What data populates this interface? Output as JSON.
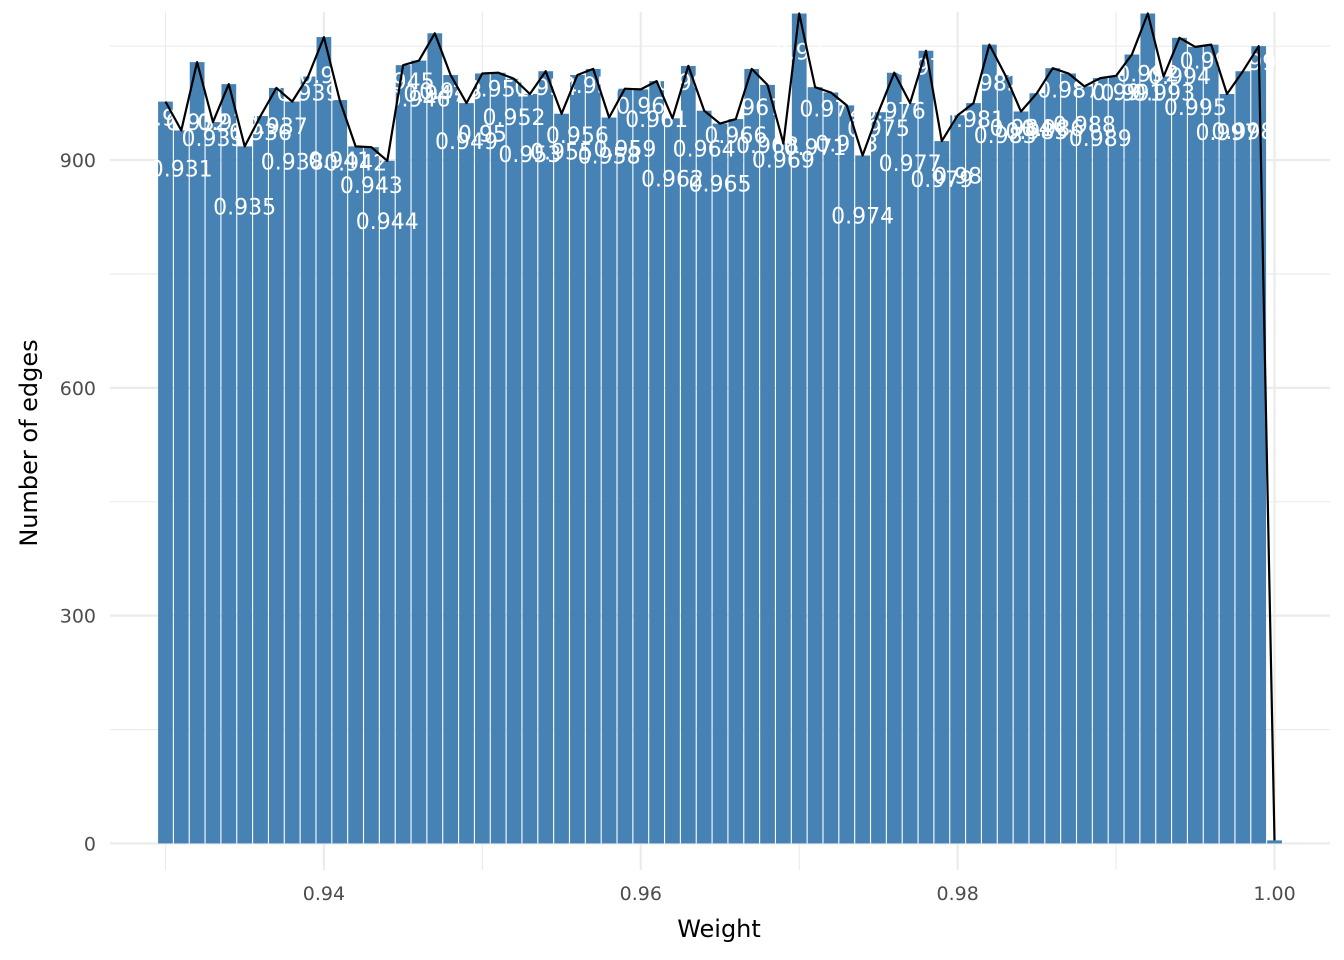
{
  "chart_data": {
    "type": "bar",
    "xlabel": "Weight",
    "ylabel": "Number of edges",
    "xlim": [
      0.9265,
      1.0035
    ],
    "ylim": [
      -35,
      1095
    ],
    "x_ticks": [
      0.94,
      0.96,
      0.98,
      1.0
    ],
    "x_tick_labels": [
      "0.94",
      "0.96",
      "0.98",
      "1.00"
    ],
    "y_ticks": [
      0,
      300,
      600,
      900
    ],
    "y_tick_labels": [
      "0",
      "300",
      "600",
      "900"
    ],
    "grid": true,
    "bar_width": 0.00093,
    "colors": {
      "bar": "#4682B4",
      "line": "#000000",
      "grid": "#EBEBEB",
      "label": "#FFFFFF"
    },
    "x": [
      0.93,
      0.931,
      0.932,
      0.933,
      0.934,
      0.935,
      0.936,
      0.937,
      0.938,
      0.939,
      0.94,
      0.941,
      0.942,
      0.943,
      0.944,
      0.945,
      0.946,
      0.947,
      0.948,
      0.949,
      0.95,
      0.951,
      0.952,
      0.953,
      0.954,
      0.955,
      0.956,
      0.957,
      0.958,
      0.959,
      0.96,
      0.961,
      0.962,
      0.963,
      0.964,
      0.965,
      0.966,
      0.967,
      0.968,
      0.969,
      0.97,
      0.971,
      0.972,
      0.973,
      0.974,
      0.975,
      0.976,
      0.977,
      0.978,
      0.979,
      0.98,
      0.981,
      0.982,
      0.983,
      0.984,
      0.985,
      0.986,
      0.987,
      0.988,
      0.989,
      0.99,
      0.991,
      0.992,
      0.993,
      0.994,
      0.995,
      0.996,
      0.997,
      0.998,
      0.999,
      1.0
    ],
    "values": [
      977,
      939,
      1029,
      950,
      1000,
      918,
      958,
      995,
      977,
      1010,
      1062,
      979,
      918,
      917,
      899,
      1025,
      1031,
      1067,
      1012,
      975,
      1014,
      1015,
      1007,
      987,
      1017,
      961,
      1012,
      1020,
      956,
      994,
      993,
      1004,
      955,
      1024,
      965,
      948,
      954,
      1020,
      999,
      922,
      1093,
      996,
      989,
      972,
      906,
      963,
      1015,
      975,
      1044,
      925,
      959,
      975,
      1052,
      1012,
      964,
      988,
      1021,
      1014,
      997,
      1008,
      1011,
      1039,
      1093,
      1010,
      1061,
      1049,
      1052,
      987,
      1017,
      1050,
      4
    ],
    "value_labels": [
      "0.93",
      "0.931",
      "0.932",
      "0.933",
      "0.934",
      "0.935",
      "0.936",
      "0.937",
      "0.938",
      "0.939",
      "0.94",
      "0.941",
      "0.942",
      "0.943",
      "0.944",
      "0.945",
      "0.946",
      "0.947",
      "0.948",
      "0.949",
      "0.95",
      "0.951",
      "0.952",
      "0.953",
      "0.954",
      "0.955",
      "0.956",
      "0.957",
      "0.958",
      "0.959",
      "0.96",
      "0.961",
      "0.962",
      "0.963",
      "0.964",
      "0.965",
      "0.966",
      "0.967",
      "0.968",
      "0.969",
      "0.97",
      "0.971",
      "0.972",
      "0.973",
      "0.974",
      "0.975",
      "0.976",
      "0.977",
      "0.978",
      "0.979",
      "0.98",
      "0.981",
      "0.982",
      "0.983",
      "0.984",
      "0.985",
      "0.986",
      "0.987",
      "0.988",
      "0.989",
      "0.99",
      "0.991",
      "0.992",
      "0.993",
      "0.994",
      "0.995",
      "0.996",
      "0.997",
      "0.998",
      "0.999",
      ""
    ]
  }
}
